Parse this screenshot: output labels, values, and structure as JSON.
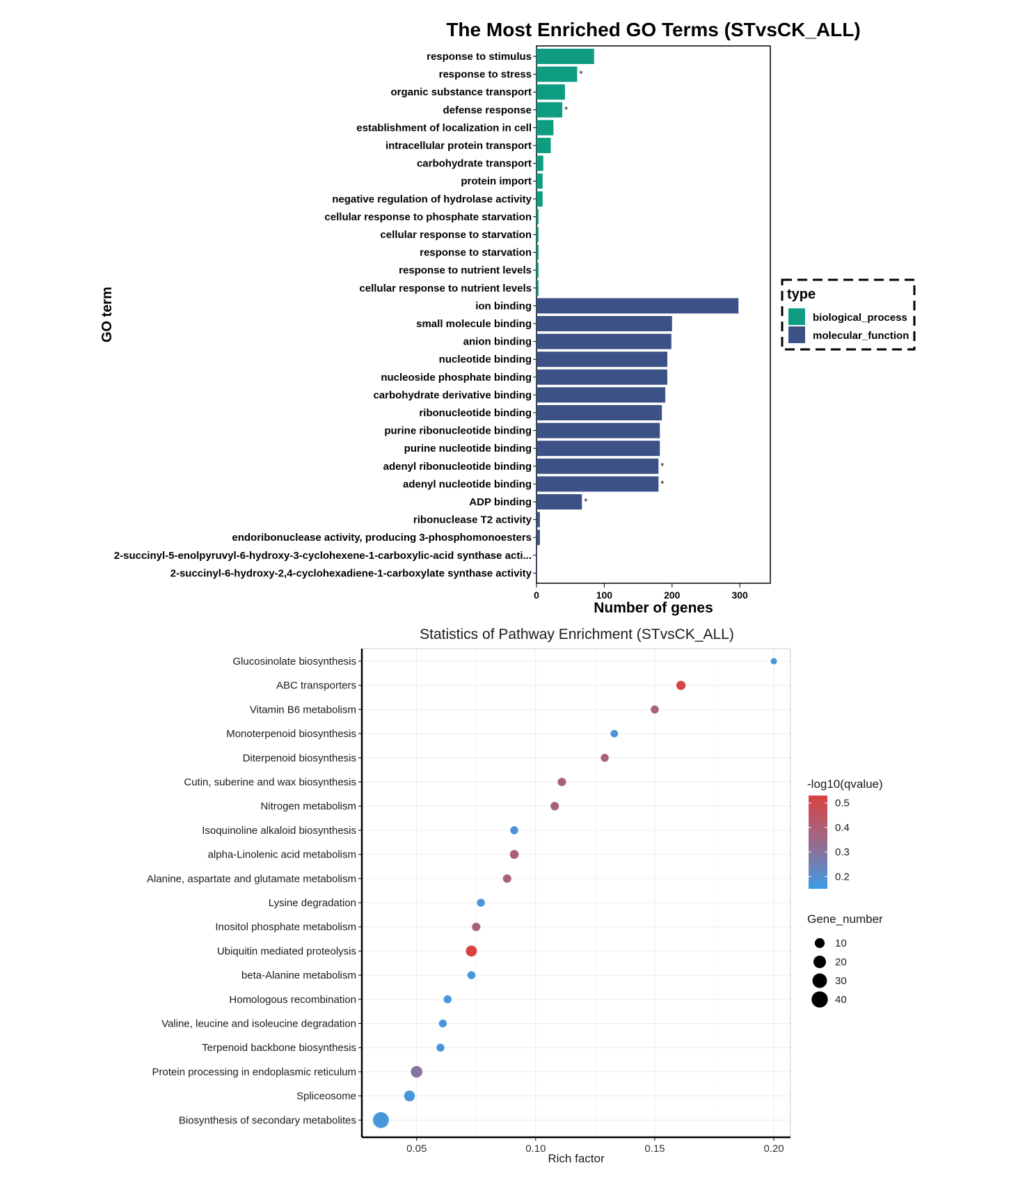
{
  "colors": {
    "biological_process": "#0f9d82",
    "molecular_function": "#3c5186",
    "low_q": "#3d9be6",
    "high_q": "#d9423f",
    "grid": "#ececec"
  },
  "chart_data": [
    {
      "type": "bar",
      "orientation": "horizontal",
      "title": "The Most Enriched GO Terms (STvsCK_ALL)",
      "xlabel": "Number of genes",
      "ylabel": "GO term",
      "xlim": [
        0,
        345
      ],
      "xticks": [
        "0",
        "100",
        "200",
        "300"
      ],
      "xtick_values": [
        0,
        100,
        200,
        300
      ],
      "grid": false,
      "legend": {
        "title": "type",
        "position": "right",
        "entries": [
          "biological_process",
          "molecular_function"
        ]
      },
      "categories": [
        "response to stimulus",
        "response to stress",
        "organic substance transport",
        "defense response",
        "establishment of localization in cell",
        "intracellular protein transport",
        "carbohydrate transport",
        "protein import",
        "negative regulation of hydrolase activity",
        "cellular response to phosphate starvation",
        "cellular response to starvation",
        "response to starvation",
        "response to nutrient levels",
        "cellular response to nutrient levels",
        "ion binding",
        "small molecule binding",
        "anion binding",
        "nucleotide binding",
        "nucleoside phosphate binding",
        "carbohydrate derivative binding",
        "ribonucleotide binding",
        "purine ribonucleotide binding",
        "purine nucleotide binding",
        "adenyl ribonucleotide binding",
        "adenyl nucleotide binding",
        "ADP binding",
        "ribonuclease T2 activity",
        "endoribonuclease activity, producing 3-phosphomonoesters",
        "2-succinyl-5-enolpyruvyl-6-hydroxy-3-cyclohexene-1-carboxylic-acid synthase acti...",
        "2-succinyl-6-hydroxy-2,4-cyclohexadiene-1-carboxylate synthase activity"
      ],
      "values": [
        85,
        60,
        42,
        38,
        25,
        21,
        10,
        9,
        9,
        3,
        3,
        3,
        3,
        3,
        298,
        200,
        199,
        193,
        193,
        190,
        185,
        182,
        182,
        180,
        180,
        67,
        5,
        5,
        1,
        1
      ],
      "types": [
        "biological_process",
        "biological_process",
        "biological_process",
        "biological_process",
        "biological_process",
        "biological_process",
        "biological_process",
        "biological_process",
        "biological_process",
        "biological_process",
        "biological_process",
        "biological_process",
        "biological_process",
        "biological_process",
        "molecular_function",
        "molecular_function",
        "molecular_function",
        "molecular_function",
        "molecular_function",
        "molecular_function",
        "molecular_function",
        "molecular_function",
        "molecular_function",
        "molecular_function",
        "molecular_function",
        "molecular_function",
        "molecular_function",
        "molecular_function",
        "molecular_function",
        "molecular_function"
      ],
      "significant": [
        false,
        true,
        false,
        true,
        false,
        false,
        false,
        false,
        false,
        false,
        false,
        false,
        false,
        false,
        false,
        false,
        false,
        false,
        false,
        false,
        false,
        false,
        false,
        true,
        true,
        true,
        false,
        false,
        false,
        false
      ],
      "star_label": "*"
    },
    {
      "type": "scatter",
      "title": "Statistics of Pathway Enrichment (STvsCK_ALL)",
      "xlabel": "Rich factor",
      "ylabel": "",
      "xlim": [
        0.027,
        0.207
      ],
      "xticks": [
        "0.05",
        "0.10",
        "0.15",
        "0.20"
      ],
      "xtick_values": [
        0.05,
        0.1,
        0.15,
        0.2
      ],
      "grid": true,
      "color_legend": {
        "title": "-log10(qvalue)",
        "range": [
          0.15,
          0.53
        ],
        "labels": [
          "0.5",
          "0.4",
          "0.3",
          "0.2"
        ],
        "label_values": [
          0.5,
          0.4,
          0.3,
          0.2
        ]
      },
      "size_legend": {
        "title": "Gene_number",
        "labels": [
          "10",
          "20",
          "30",
          "40"
        ],
        "values": [
          10,
          20,
          30,
          40
        ]
      },
      "categories": [
        "Glucosinolate biosynthesis",
        "ABC transporters",
        "Vitamin B6 metabolism",
        "Monoterpenoid biosynthesis",
        "Diterpenoid biosynthesis",
        "Cutin, suberine and wax biosynthesis",
        "Nitrogen metabolism",
        "Isoquinoline alkaloid biosynthesis",
        "alpha-Linolenic acid metabolism",
        "Alanine, aspartate and glutamate metabolism",
        "Lysine degradation",
        "Inositol phosphate metabolism",
        "Ubiquitin mediated proteolysis",
        "beta-Alanine metabolism",
        "Homologous recombination",
        "Valine, leucine and isoleucine degradation",
        "Terpenoid backbone biosynthesis",
        "Protein processing in endoplasmic reticulum",
        "Spliceosome",
        "Biosynthesis of secondary metabolites"
      ],
      "x": [
        0.2,
        0.161,
        0.15,
        0.133,
        0.129,
        0.111,
        0.108,
        0.091,
        0.091,
        0.088,
        0.077,
        0.075,
        0.073,
        0.073,
        0.063,
        0.061,
        0.06,
        0.05,
        0.047,
        0.035
      ],
      "qvalue": [
        0.17,
        0.52,
        0.38,
        0.18,
        0.38,
        0.38,
        0.38,
        0.18,
        0.38,
        0.38,
        0.18,
        0.38,
        0.53,
        0.17,
        0.17,
        0.17,
        0.17,
        0.3,
        0.17,
        0.17
      ],
      "gene_number": [
        2,
        8,
        5,
        4,
        5,
        6,
        6,
        5,
        7,
        6,
        5,
        6,
        14,
        5,
        5,
        5,
        5,
        16,
        13,
        38
      ]
    }
  ]
}
